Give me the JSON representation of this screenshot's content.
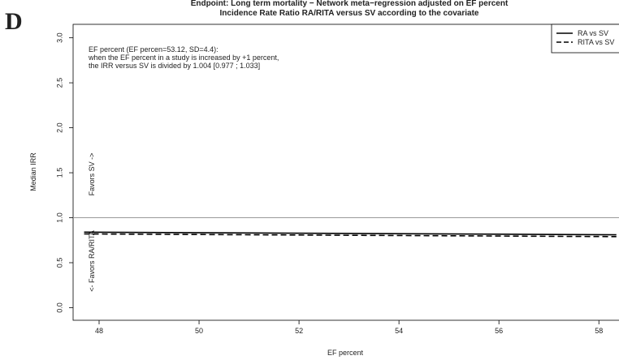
{
  "panel_label": "D",
  "chart_data": {
    "type": "line",
    "title": [
      "Endpoint: Long term mortality − Network meta−regression adjusted on EF percent",
      "Incidence Rate Ratio RA/RITA versus SV according to the covariate"
    ],
    "annotation": [
      "EF percent (EF percen=53.12, SD=4.4):",
      "when the EF percent in a study is increased by +1 percent,",
      "the IRR versus SV is divided by 1.004 [0.977 ; 1.033]"
    ],
    "region_labels": [
      "Favors SV ->",
      "<- Favors RA/RITA"
    ],
    "xlabel": "EF percent",
    "ylabel": "Median IRR",
    "x": [
      47.7,
      58.35
    ],
    "series": [
      {
        "name": "RA vs SV",
        "color": "#000000",
        "dash": "solid",
        "values": [
          0.84,
          0.81
        ]
      },
      {
        "name": "RITA vs SV",
        "color": "#000000",
        "dash": "dashed",
        "values": [
          0.82,
          0.79
        ]
      }
    ],
    "reference_line": 1.0,
    "xlim": [
      47.48,
      58.37
    ],
    "ylim": [
      -0.14,
      3.15
    ],
    "xticks": [
      48,
      50,
      52,
      54,
      56,
      58
    ],
    "yticks": [
      {
        "value": 0,
        "label": "0.0"
      },
      {
        "value": 0.5,
        "label": "0.5"
      },
      {
        "value": 1,
        "label": "1.0"
      },
      {
        "value": 1.5,
        "label": "1.5"
      },
      {
        "value": 2,
        "label": "2.0"
      },
      {
        "value": 2.5,
        "label": "2.5"
      },
      {
        "value": 3,
        "label": "3.0"
      }
    ],
    "legend": "top-right"
  }
}
